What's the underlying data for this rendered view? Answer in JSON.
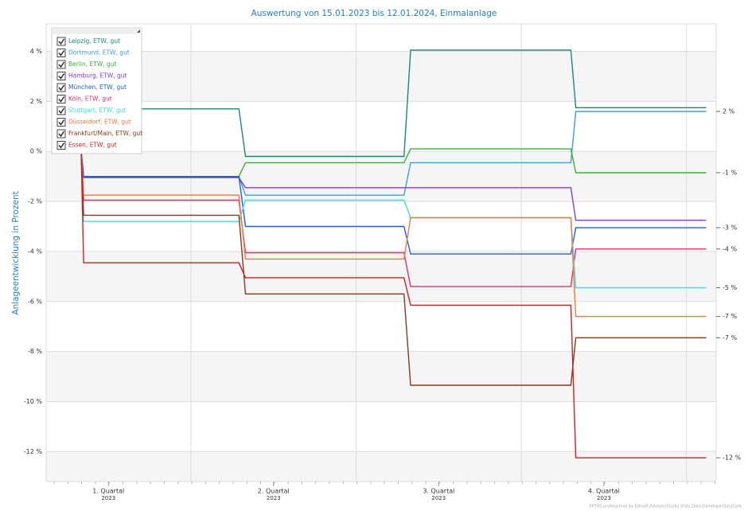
{
  "chart_data": {
    "type": "line",
    "title": "Auswertung von 15.01.2023 bis 12.01.2024, Einmalanlage",
    "y_label": "Anlageentwicklung  in Prozent",
    "footer": "XPTRS professional by Edisoft.AdvisorsStudio.Stats.Data.DeveloperDataCore",
    "x": [
      0.335,
      0.35,
      1.29,
      1.33,
      2.29,
      2.33,
      3.3,
      3.33,
      4.12
    ],
    "xlim": [
      0.123,
      4.18
    ],
    "xticks": [
      {
        "value": 0.5,
        "label": "1. Quartal",
        "sublabel": "2023"
      },
      {
        "value": 1.5,
        "label": "2. Quartal",
        "sublabel": "2023"
      },
      {
        "value": 2.5,
        "label": "3. Quartal",
        "sublabel": "2023"
      },
      {
        "value": 3.5,
        "label": "4. Quartal",
        "sublabel": "2023"
      }
    ],
    "xgrid": [
      1,
      2,
      3,
      4
    ],
    "ylim": [
      -13.2,
      5.1
    ],
    "yticks": [
      {
        "value": 4,
        "label": "4 %"
      },
      {
        "value": 2,
        "label": "2 %"
      },
      {
        "value": 0,
        "label": "0 %"
      },
      {
        "value": -2,
        "label": "-2 %"
      },
      {
        "value": -4,
        "label": "-4 %"
      },
      {
        "value": -6,
        "label": "-6 %"
      },
      {
        "value": -8,
        "label": "-8 %"
      },
      {
        "value": -10,
        "label": "-10 %"
      },
      {
        "value": -12,
        "label": "-12 %"
      }
    ],
    "grid": true,
    "legend": "top-left",
    "series": [
      {
        "name": "Leipzig, ETW, gut",
        "color": "#1a8a7a",
        "values": [
          0,
          1.7,
          1.7,
          -0.2,
          -0.2,
          4.05,
          4.05,
          1.75,
          1.75
        ]
      },
      {
        "name": "Dortmund, ETW, gut",
        "color": "#3aa0d8",
        "values": [
          0,
          -1.0,
          -1.0,
          -1.75,
          -1.75,
          -0.45,
          -0.45,
          1.6,
          1.6
        ],
        "value_labels": [
          null,
          null,
          null,
          null,
          null,
          null,
          null,
          null,
          "2 %"
        ]
      },
      {
        "name": "Berlin, ETW, gut",
        "color": "#3cb03c",
        "values": [
          0,
          -1.0,
          -1.0,
          -0.45,
          -0.45,
          0.1,
          0.1,
          -0.85,
          -0.85
        ],
        "value_labels": [
          null,
          null,
          null,
          null,
          null,
          null,
          null,
          null,
          "-1 %"
        ]
      },
      {
        "name": "Hamburg, ETW, gut",
        "color": "#8a3ad8",
        "values": [
          0,
          -1.05,
          -1.05,
          -1.45,
          -1.45,
          -1.45,
          -1.45,
          -2.75,
          -2.75
        ]
      },
      {
        "name": "München, ETW, gut",
        "color": "#2060e0",
        "values": [
          0,
          -1.0,
          -1.0,
          -3.0,
          -3.0,
          -4.1,
          -4.1,
          -3.05,
          -3.05
        ],
        "value_labels": [
          null,
          null,
          null,
          null,
          null,
          null,
          null,
          null,
          "-3 %"
        ]
      },
      {
        "name": "Köln, ETW, gut",
        "color": "#e0306a",
        "values": [
          0,
          -1.95,
          -1.95,
          -4.05,
          -4.05,
          -5.4,
          -5.4,
          -3.9,
          -3.9
        ],
        "value_labels": [
          null,
          null,
          null,
          null,
          null,
          null,
          null,
          null,
          "-4 %"
        ]
      },
      {
        "name": "Stuttgart, ETW, gut",
        "color": "#40e0e0",
        "values": [
          0,
          -2.8,
          -2.8,
          -1.95,
          -1.95,
          -2.65,
          -2.65,
          -5.45,
          -5.45
        ],
        "value_labels": [
          null,
          null,
          null,
          null,
          null,
          null,
          null,
          null,
          "-5 %"
        ]
      },
      {
        "name": "Düsseldorf, ETW, gut",
        "color": "#f07840",
        "values": [
          0,
          -1.75,
          -1.75,
          -4.3,
          -4.3,
          -2.65,
          -2.65,
          -6.6,
          -6.6
        ],
        "value_labels": [
          null,
          null,
          null,
          null,
          null,
          null,
          null,
          null,
          "-7 %"
        ]
      },
      {
        "name": "Frankfurt/Main, ETW, gut",
        "color": "#8a3a1a",
        "values": [
          0,
          -2.55,
          -2.55,
          -5.7,
          -5.7,
          -9.35,
          -9.35,
          -7.45,
          -7.45
        ],
        "value_labels": [
          null,
          null,
          null,
          null,
          null,
          null,
          null,
          null,
          "-7 %"
        ]
      },
      {
        "name": "Essen, ETW, gut",
        "color": "#d02020",
        "values": [
          0,
          -4.45,
          -4.45,
          -5.05,
          -5.05,
          -6.15,
          -6.15,
          -12.25,
          -12.25
        ],
        "value_labels": [
          null,
          null,
          null,
          null,
          null,
          null,
          null,
          null,
          "-12 %"
        ]
      }
    ]
  }
}
